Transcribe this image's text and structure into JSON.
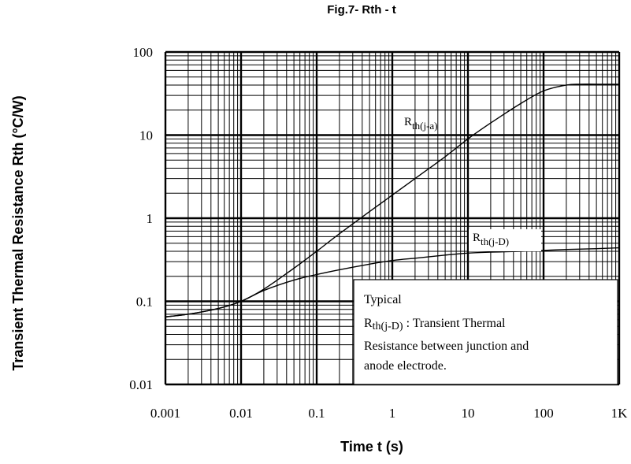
{
  "chart_data": {
    "type": "line",
    "title": "Fig.7- Rth - t",
    "xlabel": "Time t (s)",
    "ylabel": "Transient Thermal Resistance  Rth (°C/W)",
    "xscale": "log",
    "yscale": "log",
    "xlim": [
      0.001,
      1000
    ],
    "ylim": [
      0.01,
      100
    ],
    "grid": true,
    "x_tick_labels": [
      "0.001",
      "0.01",
      "0.1",
      "1",
      "10",
      "100",
      "1K"
    ],
    "y_tick_labels": [
      "0.01",
      "0.1",
      "1",
      "10",
      "100"
    ],
    "series": [
      {
        "name": "Rth(j-a)",
        "label_main": "R",
        "label_sub": "th(j-a)",
        "x": [
          0.001,
          0.002,
          0.005,
          0.01,
          0.02,
          0.05,
          0.1,
          0.2,
          0.5,
          1,
          2,
          5,
          10,
          20,
          50,
          100,
          200,
          300,
          500,
          1000
        ],
        "y": [
          0.065,
          0.07,
          0.082,
          0.1,
          0.14,
          0.25,
          0.4,
          0.65,
          1.2,
          1.9,
          3.0,
          5.5,
          9.0,
          14,
          24,
          34,
          40,
          41,
          41,
          41
        ]
      },
      {
        "name": "Rth(j-D)",
        "label_main": "R",
        "label_sub": "th(j-D)",
        "x": [
          0.001,
          0.002,
          0.005,
          0.01,
          0.02,
          0.05,
          0.1,
          0.2,
          0.5,
          1,
          2,
          5,
          10,
          20,
          50,
          100,
          200,
          500,
          1000
        ],
        "y": [
          0.065,
          0.07,
          0.082,
          0.1,
          0.135,
          0.18,
          0.21,
          0.24,
          0.28,
          0.31,
          0.33,
          0.36,
          0.38,
          0.39,
          0.4,
          0.41,
          0.42,
          0.43,
          0.44
        ]
      }
    ],
    "legend": {
      "line1": "Typical",
      "line2_main": "R",
      "line2_sub": "th(j-D)",
      "line2_rest": " : Transient Thermal",
      "line3": "Resistance between junction and",
      "line4": "anode electrode."
    }
  }
}
